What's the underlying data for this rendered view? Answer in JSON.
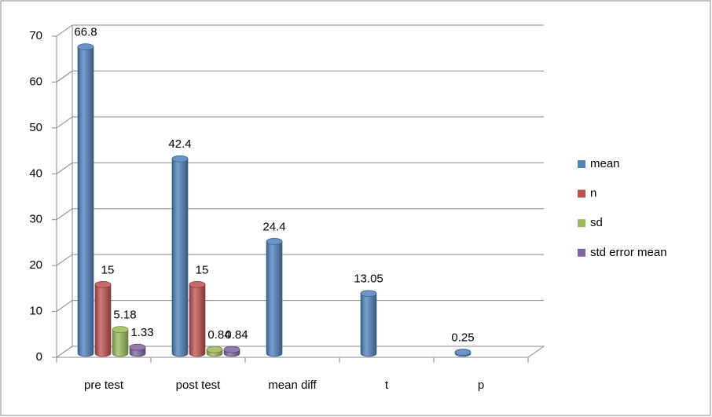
{
  "chart_data": {
    "type": "bar",
    "categories": [
      "pre test",
      "post test",
      "mean diff",
      "t",
      "p"
    ],
    "series": [
      {
        "name": "mean",
        "color": "#4f81bd",
        "values": [
          66.8,
          42.4,
          24.4,
          13.05,
          0.25
        ]
      },
      {
        "name": "n",
        "color": "#c0504d",
        "values": [
          15,
          15,
          null,
          null,
          null
        ]
      },
      {
        "name": "sd",
        "color": "#9bbb59",
        "values": [
          5.18,
          0.84,
          null,
          null,
          null
        ]
      },
      {
        "name": "std error mean",
        "color": "#8064a2",
        "values": [
          1.33,
          0.84,
          null,
          null,
          null
        ]
      }
    ],
    "ylim": [
      0,
      70
    ],
    "yticks": [
      0,
      10,
      20,
      30,
      40,
      50,
      60,
      70
    ],
    "grid": true,
    "legend": "right"
  }
}
